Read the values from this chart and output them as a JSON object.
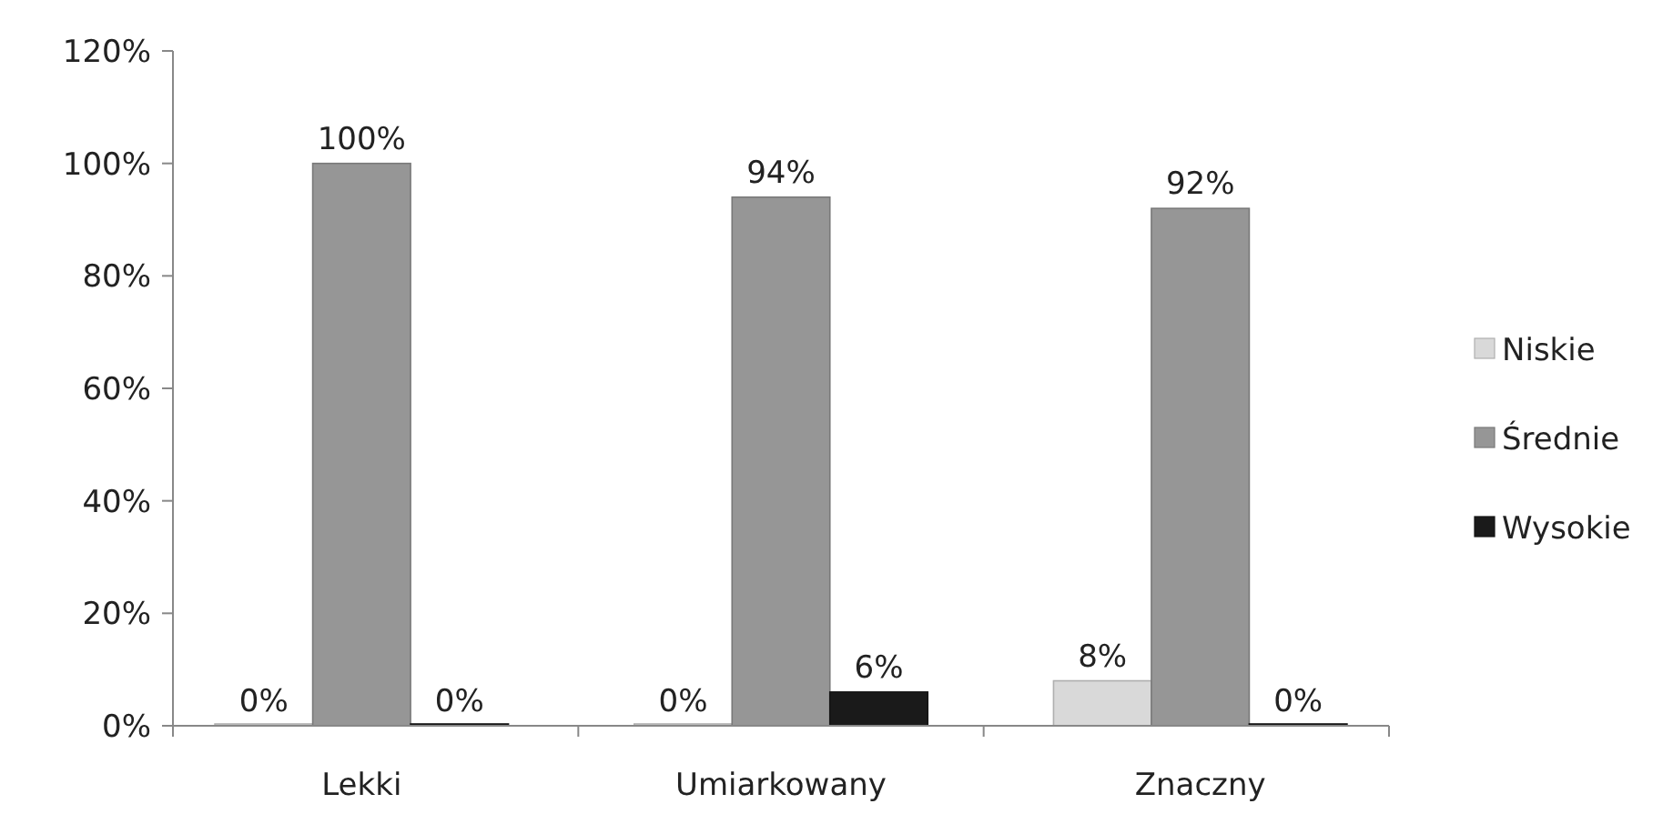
{
  "chart_data": {
    "type": "bar",
    "categories": [
      "Lekki",
      "Umiarkowany",
      "Znaczny"
    ],
    "series": [
      {
        "name": "Niskie",
        "color": "#d9d9d9",
        "values": [
          0,
          0,
          8
        ],
        "value_labels": [
          "0%",
          "0%",
          "8%"
        ]
      },
      {
        "name": "Średnie",
        "color": "#969696",
        "values": [
          100,
          94,
          92
        ],
        "value_labels": [
          "100%",
          "94%",
          "92%"
        ]
      },
      {
        "name": "Wysokie",
        "color": "#1a1a1a",
        "values": [
          0,
          6,
          0
        ],
        "value_labels": [
          "0%",
          "6%",
          "0%"
        ]
      }
    ],
    "ylim": [
      0,
      120
    ],
    "yticks": [
      {
        "value": 0,
        "label": "0%"
      },
      {
        "value": 20,
        "label": "20%"
      },
      {
        "value": 40,
        "label": "40%"
      },
      {
        "value": 60,
        "label": "60%"
      },
      {
        "value": 80,
        "label": "80%"
      },
      {
        "value": 100,
        "label": "100%"
      },
      {
        "value": 120,
        "label": "120%"
      }
    ],
    "grid": false,
    "legend": "right"
  }
}
